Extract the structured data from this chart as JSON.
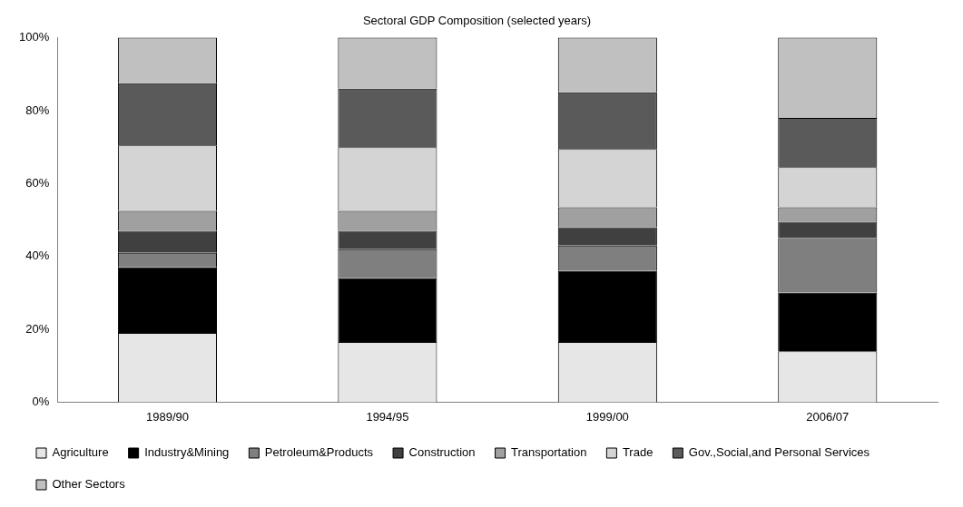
{
  "chart_data": {
    "type": "bar",
    "title": "Sectoral GDP Composition (selected years)",
    "stacked": true,
    "categories": [
      "1989/90",
      "1994/95",
      "1999/00",
      "2006/07"
    ],
    "series": [
      {
        "name": "Agriculture",
        "color": "#e6e6e6",
        "values": [
          19,
          16.5,
          16.5,
          14
        ]
      },
      {
        "name": "Industry&Mining",
        "color": "#000000",
        "values": [
          18,
          17.5,
          19.5,
          16
        ]
      },
      {
        "name": "Petroleum&Products",
        "color": "#7f7f7f",
        "values": [
          4,
          8,
          7,
          15
        ]
      },
      {
        "name": "Construction",
        "color": "#404040",
        "values": [
          6,
          5,
          5,
          4.5
        ]
      },
      {
        "name": "Transportation",
        "color": "#a0a0a0",
        "values": [
          5.5,
          5.5,
          5.5,
          4
        ]
      },
      {
        "name": "Trade",
        "color": "#d4d4d4",
        "values": [
          18,
          17.5,
          16,
          11
        ]
      },
      {
        "name": "Gov.,Social,and Personal Services",
        "color": "#5a5a5a",
        "values": [
          17,
          16,
          15.5,
          13.5
        ]
      },
      {
        "name": "Other Sectors",
        "color": "#c0c0c0",
        "values": [
          12.5,
          14,
          15,
          22
        ]
      }
    ],
    "ylim": [
      0,
      100
    ],
    "yticks": [
      {
        "value": 0,
        "label": "0%"
      },
      {
        "value": 20,
        "label": "20%"
      },
      {
        "value": 40,
        "label": "40%"
      },
      {
        "value": 60,
        "label": "60%"
      },
      {
        "value": 80,
        "label": "80%"
      },
      {
        "value": 100,
        "label": "100%"
      }
    ],
    "grid": false,
    "legend": "bottom"
  }
}
